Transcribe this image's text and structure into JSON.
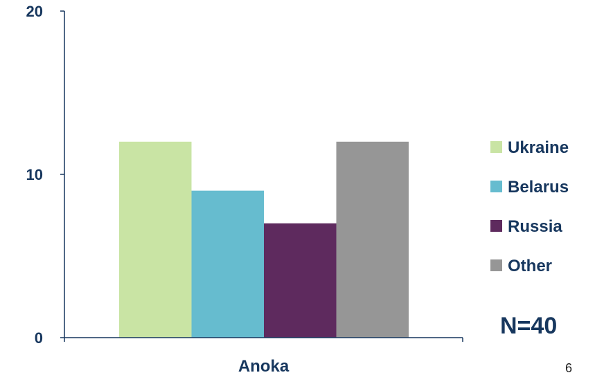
{
  "chart_data": {
    "type": "bar",
    "categories": [
      "Anoka"
    ],
    "series": [
      {
        "name": "Ukraine",
        "values": [
          12
        ],
        "color": "#c9e4a4"
      },
      {
        "name": "Belarus",
        "values": [
          9
        ],
        "color": "#66bccf"
      },
      {
        "name": "Russia",
        "values": [
          7
        ],
        "color": "#5e2a5e"
      },
      {
        "name": "Other",
        "values": [
          12
        ],
        "color": "#969696"
      }
    ],
    "ylim": [
      0,
      20
    ],
    "yticks": [
      0,
      10,
      20
    ],
    "grid": false,
    "legend_position": "right",
    "annotation": "N=40"
  },
  "page_number": "6"
}
